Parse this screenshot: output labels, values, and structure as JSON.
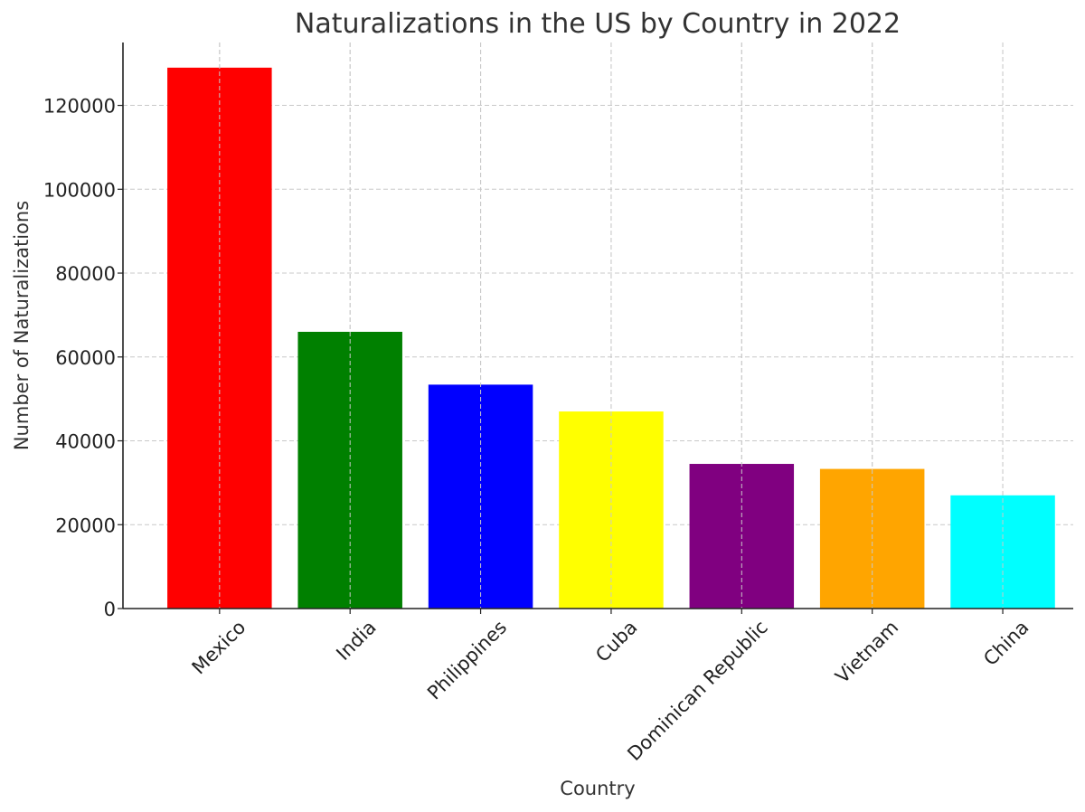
{
  "chart_data": {
    "type": "bar",
    "title": "Naturalizations in the US by Country in 2022",
    "xlabel": "Country",
    "ylabel": "Number of Naturalizations",
    "categories": [
      "Mexico",
      "India",
      "Philippines",
      "Cuba",
      "Dominican Republic",
      "Vietnam",
      "China"
    ],
    "values": [
      129000,
      66000,
      53400,
      47000,
      34500,
      33300,
      27000
    ],
    "colors": [
      "#ff0000",
      "#008000",
      "#0000ff",
      "#ffff00",
      "#800080",
      "#ffa500",
      "#00ffff"
    ],
    "ylim": [
      0,
      135000
    ],
    "yticks": [
      0,
      20000,
      40000,
      60000,
      80000,
      100000,
      120000
    ],
    "grid": true,
    "xtick_rotation": -45
  }
}
